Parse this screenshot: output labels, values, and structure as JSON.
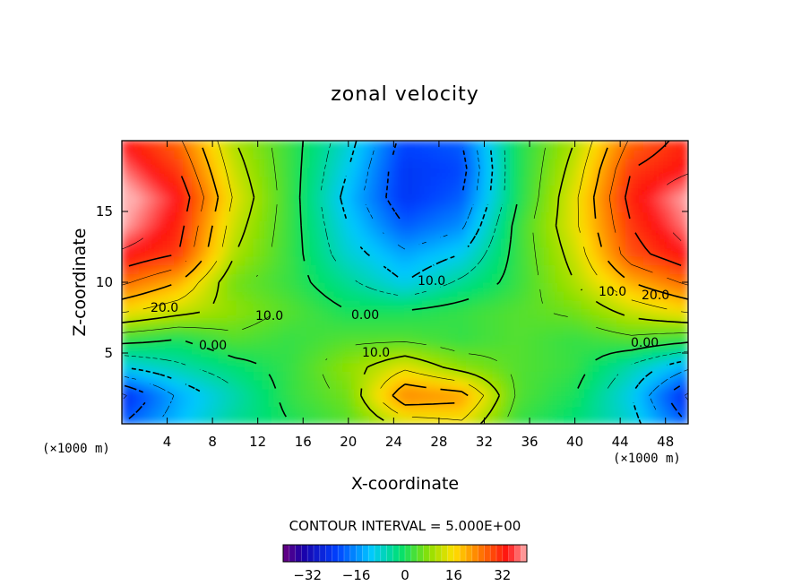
{
  "chart_data": {
    "type": "heatmap",
    "title": "zonal velocity",
    "xlabel": "X-coordinate",
    "ylabel": "Z-coordinate",
    "x_unit": "(×1000 m)",
    "z_unit": "(×1000 m)",
    "xlim": [
      0,
      50
    ],
    "ylim": [
      0,
      20
    ],
    "x_ticks": [
      "4",
      "8",
      "12",
      "16",
      "20",
      "24",
      "28",
      "32",
      "36",
      "40",
      "44",
      "48"
    ],
    "y_ticks": [
      "5",
      "10",
      "15"
    ],
    "contour_interval_text": "CONTOUR INTERVAL = 5.000E+00",
    "colorbar_ticks": [
      "−32",
      "−16",
      "0",
      "16",
      "32"
    ],
    "colorbar_range": [
      -40,
      40
    ],
    "contour_labels": [
      "20.0",
      "10.0",
      "0.00",
      "0.00",
      "10.0",
      "10.0",
      "10.0",
      "20.0",
      "0.00"
    ],
    "sample_values_note_free": true,
    "field_samples": {
      "x": [
        0,
        5,
        10,
        15,
        20,
        25,
        30,
        35,
        40,
        45,
        50
      ],
      "z": [
        0,
        2,
        4,
        6,
        8,
        10,
        12,
        14,
        16,
        18,
        20
      ],
      "values": [
        [
          -20,
          -12,
          -4,
          0,
          4,
          12,
          14,
          2,
          -2,
          -8,
          -20
        ],
        [
          -26,
          -14,
          -6,
          2,
          6,
          24,
          22,
          4,
          0,
          -10,
          -26
        ],
        [
          -10,
          -6,
          -2,
          2,
          8,
          14,
          8,
          4,
          2,
          -6,
          -14
        ],
        [
          2,
          0,
          4,
          2,
          4,
          4,
          2,
          4,
          2,
          4,
          2
        ],
        [
          16,
          12,
          8,
          4,
          0,
          0,
          2,
          4,
          6,
          12,
          16
        ],
        [
          26,
          20,
          6,
          2,
          -4,
          -10,
          -4,
          2,
          10,
          20,
          26
        ],
        [
          34,
          30,
          10,
          2,
          -8,
          -14,
          -10,
          2,
          12,
          28,
          34
        ],
        [
          40,
          32,
          12,
          2,
          -10,
          -20,
          -16,
          2,
          14,
          30,
          38
        ],
        [
          42,
          34,
          14,
          2,
          -12,
          -24,
          -20,
          0,
          14,
          32,
          40
        ],
        [
          38,
          30,
          12,
          2,
          -10,
          -24,
          -22,
          0,
          12,
          30,
          34
        ],
        [
          34,
          26,
          10,
          2,
          -8,
          -22,
          -20,
          0,
          10,
          26,
          32
        ]
      ]
    }
  }
}
